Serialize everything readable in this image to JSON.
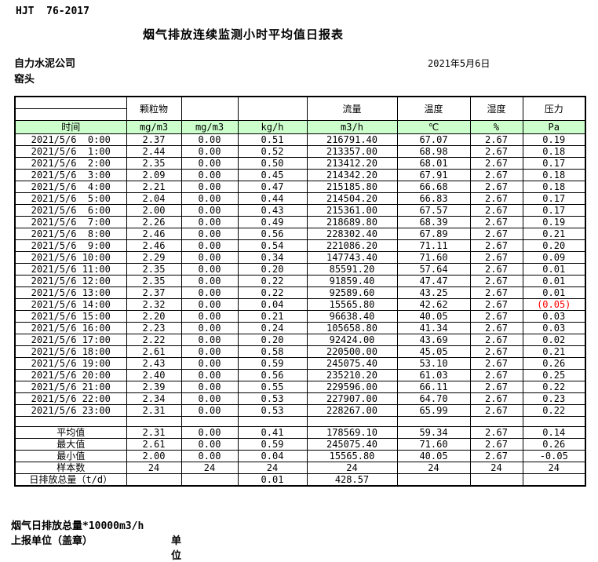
{
  "header": {
    "standard": "HJT  76-2017",
    "title": "烟气排放连续监测小时平均值日报表",
    "company": "自力水泥公司",
    "station": "窑头",
    "date": "2021年5月6日"
  },
  "table": {
    "group_headers": {
      "particulate": "颗粒物",
      "flow": "流量",
      "temperature": "温度",
      "humidity": "湿度",
      "pressure": "压力"
    },
    "unit_headers": [
      "时间",
      "mg/m3",
      "mg/m3",
      "kg/h",
      "m3/h",
      "℃",
      "%",
      "Pa"
    ],
    "rows": [
      [
        "2021/5/6  0:00",
        "2.37",
        "0.00",
        "0.51",
        "216791.40",
        "67.07",
        "2.67",
        "0.19"
      ],
      [
        "2021/5/6  1:00",
        "2.44",
        "0.00",
        "0.52",
        "213357.00",
        "68.98",
        "2.67",
        "0.18"
      ],
      [
        "2021/5/6  2:00",
        "2.35",
        "0.00",
        "0.50",
        "213412.20",
        "68.01",
        "2.67",
        "0.17"
      ],
      [
        "2021/5/6  3:00",
        "2.09",
        "0.00",
        "0.45",
        "214342.20",
        "67.91",
        "2.67",
        "0.18"
      ],
      [
        "2021/5/6  4:00",
        "2.21",
        "0.00",
        "0.47",
        "215185.80",
        "66.68",
        "2.67",
        "0.18"
      ],
      [
        "2021/5/6  5:00",
        "2.04",
        "0.00",
        "0.44",
        "214504.20",
        "66.83",
        "2.67",
        "0.17"
      ],
      [
        "2021/5/6  6:00",
        "2.00",
        "0.00",
        "0.43",
        "215361.00",
        "67.57",
        "2.67",
        "0.17"
      ],
      [
        "2021/5/6  7:00",
        "2.26",
        "0.00",
        "0.49",
        "218689.80",
        "68.39",
        "2.67",
        "0.19"
      ],
      [
        "2021/5/6  8:00",
        "2.46",
        "0.00",
        "0.56",
        "228302.40",
        "67.89",
        "2.67",
        "0.21"
      ],
      [
        "2021/5/6  9:00",
        "2.46",
        "0.00",
        "0.54",
        "221086.20",
        "71.11",
        "2.67",
        "0.20"
      ],
      [
        "2021/5/6 10:00",
        "2.29",
        "0.00",
        "0.34",
        "147743.40",
        "71.60",
        "2.67",
        "0.09"
      ],
      [
        "2021/5/6 11:00",
        "2.35",
        "0.00",
        "0.20",
        "85591.20",
        "57.64",
        "2.67",
        "0.01"
      ],
      [
        "2021/5/6 12:00",
        "2.35",
        "0.00",
        "0.22",
        "91859.40",
        "47.47",
        "2.67",
        "0.01"
      ],
      [
        "2021/5/6 13:00",
        "2.37",
        "0.00",
        "0.22",
        "92589.60",
        "43.25",
        "2.67",
        "0.01"
      ],
      [
        "2021/5/6 14:00",
        "2.32",
        "0.00",
        "0.04",
        "15565.80",
        "42.62",
        "2.67",
        "(0.05)"
      ],
      [
        "2021/5/6 15:00",
        "2.20",
        "0.00",
        "0.21",
        "96638.40",
        "40.05",
        "2.67",
        "0.03"
      ],
      [
        "2021/5/6 16:00",
        "2.23",
        "0.00",
        "0.24",
        "105658.80",
        "41.34",
        "2.67",
        "0.03"
      ],
      [
        "2021/5/6 17:00",
        "2.22",
        "0.00",
        "0.20",
        "92424.00",
        "43.69",
        "2.67",
        "0.02"
      ],
      [
        "2021/5/6 18:00",
        "2.61",
        "0.00",
        "0.58",
        "220500.00",
        "45.05",
        "2.67",
        "0.21"
      ],
      [
        "2021/5/6 19:00",
        "2.43",
        "0.00",
        "0.59",
        "245075.40",
        "53.10",
        "2.67",
        "0.26"
      ],
      [
        "2021/5/6 20:00",
        "2.40",
        "0.00",
        "0.56",
        "235210.20",
        "61.03",
        "2.67",
        "0.25"
      ],
      [
        "2021/5/6 21:00",
        "2.39",
        "0.00",
        "0.55",
        "229596.00",
        "66.11",
        "2.67",
        "0.22"
      ],
      [
        "2021/5/6 22:00",
        "2.34",
        "0.00",
        "0.53",
        "227907.00",
        "64.70",
        "2.67",
        "0.23"
      ],
      [
        "2021/5/6 23:00",
        "2.31",
        "0.00",
        "0.53",
        "228267.00",
        "65.99",
        "2.67",
        "0.22"
      ]
    ],
    "summary": [
      [
        "平均值",
        "2.31",
        "0.00",
        "0.41",
        "178569.10",
        "59.34",
        "2.67",
        "0.14"
      ],
      [
        "最大值",
        "2.61",
        "0.00",
        "0.59",
        "245075.40",
        "71.60",
        "2.67",
        "0.26"
      ],
      [
        "最小值",
        "2.00",
        "0.00",
        "0.04",
        "15565.80",
        "40.05",
        "2.67",
        "-0.05"
      ],
      [
        "样本数",
        "24",
        "24",
        "24",
        "24",
        "24",
        "24",
        "24"
      ],
      [
        "日排放总量（t/d）",
        "",
        "",
        "0.01",
        "428.57",
        "",
        "",
        ""
      ]
    ]
  },
  "footer": {
    "note": "烟气日排放总量*10000m3/h",
    "report_unit": "上报单位（盖章）",
    "unit_label": "单位"
  },
  "colors": {
    "header_green": "#CCFFCC",
    "alarm_red": "#FF0000"
  }
}
